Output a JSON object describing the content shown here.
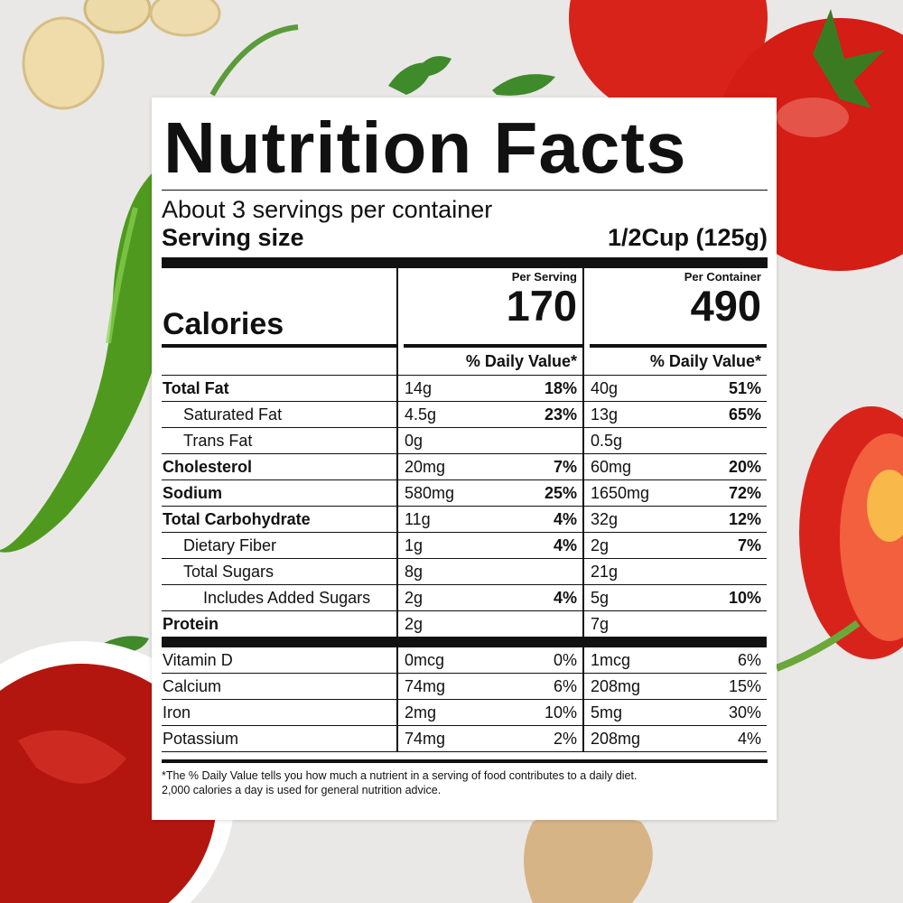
{
  "label": {
    "title": "Nutrition Facts",
    "servings_per_container": "About 3 servings per container",
    "serving_size_label": "Serving size",
    "serving_size_value": "1/2Cup (125g)",
    "calories_label": "Calories",
    "per_serving_label": "Per Serving",
    "per_container_label": "Per Container",
    "calories_per_serving": "170",
    "calories_per_container": "490",
    "dv_header": "% Daily Value*",
    "nutrients": [
      {
        "name": "Total Fat",
        "serving_amount": "14g",
        "serving_dv": "18%",
        "container_amount": "40g",
        "container_dv": "51%"
      },
      {
        "name": "Saturated Fat",
        "serving_amount": "4.5g",
        "serving_dv": "23%",
        "container_amount": "13g",
        "container_dv": "65%"
      },
      {
        "name": "Trans Fat",
        "serving_amount": "0g",
        "serving_dv": "",
        "container_amount": "0.5g",
        "container_dv": ""
      },
      {
        "name": "Cholesterol",
        "serving_amount": "20mg",
        "serving_dv": "7%",
        "container_amount": "60mg",
        "container_dv": "20%"
      },
      {
        "name": "Sodium",
        "serving_amount": "580mg",
        "serving_dv": "25%",
        "container_amount": "1650mg",
        "container_dv": "72%"
      },
      {
        "name": "Total Carbohydrate",
        "serving_amount": "11g",
        "serving_dv": "4%",
        "container_amount": "32g",
        "container_dv": "12%"
      },
      {
        "name": "Dietary Fiber",
        "serving_amount": "1g",
        "serving_dv": "4%",
        "container_amount": "2g",
        "container_dv": "7%"
      },
      {
        "name": "Total Sugars",
        "serving_amount": "8g",
        "serving_dv": "",
        "container_amount": "21g",
        "container_dv": ""
      },
      {
        "name": "Includes Added Sugars",
        "serving_amount": "2g",
        "serving_dv": "4%",
        "container_amount": "5g",
        "container_dv": "10%"
      },
      {
        "name": "Protein",
        "serving_amount": "2g",
        "serving_dv": "",
        "container_amount": "7g",
        "container_dv": ""
      }
    ],
    "vitamins": [
      {
        "name": "Vitamin D",
        "serving_amount": "0mcg",
        "serving_dv": "0%",
        "container_amount": "1mcg",
        "container_dv": "6%"
      },
      {
        "name": "Calcium",
        "serving_amount": "74mg",
        "serving_dv": "6%",
        "container_amount": "208mg",
        "container_dv": "15%"
      },
      {
        "name": "Iron",
        "serving_amount": "2mg",
        "serving_dv": "10%",
        "container_amount": "5mg",
        "container_dv": "30%"
      },
      {
        "name": "Potassium",
        "serving_amount": "74mg",
        "serving_dv": "2%",
        "container_amount": "208mg",
        "container_dv": "4%"
      }
    ],
    "footnote_line1": "*The % Daily Value tells you how much a nutrient in a serving of food contributes to a daily diet.",
    "footnote_line2": "2,000 calories a day is used for general nutrition advice."
  },
  "colors": {
    "background": "#e8e7e5",
    "tomato_red": "#d8231b",
    "pepper_green": "#4f9a1e",
    "ketchup_red": "#b3160f",
    "ink": "#111111"
  }
}
